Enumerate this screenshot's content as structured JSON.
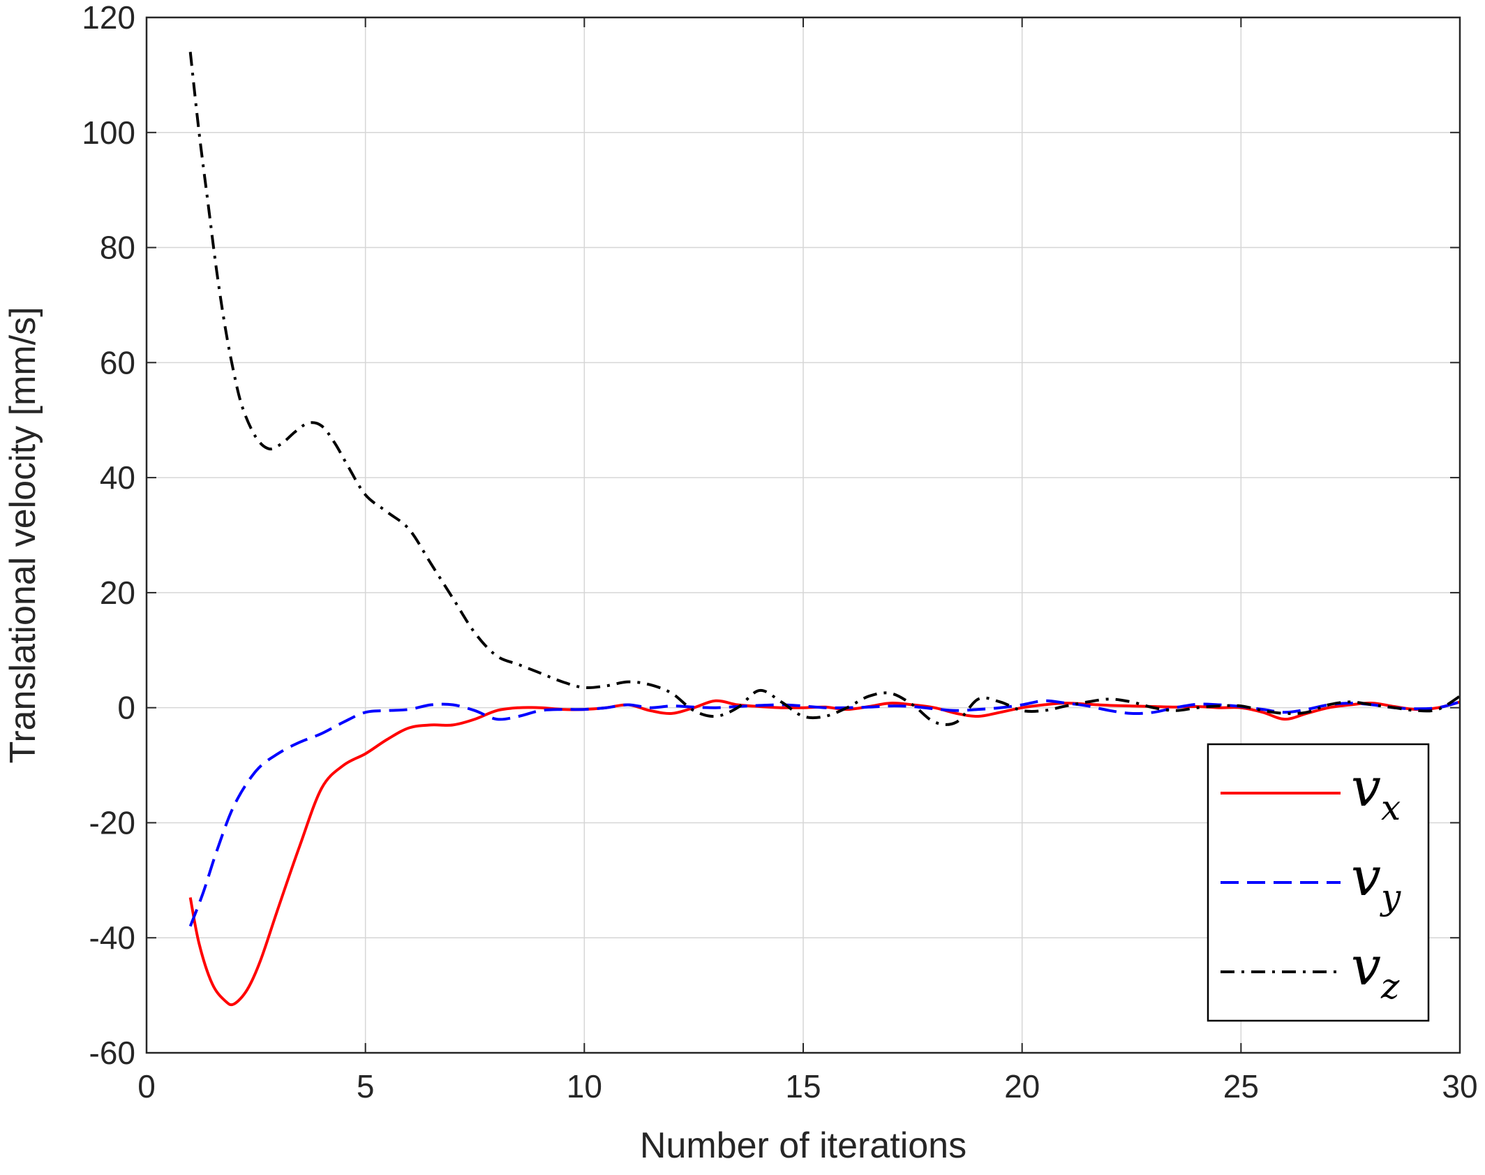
{
  "chart_data": {
    "type": "line",
    "title": "",
    "xlabel": "Number of iterations",
    "ylabel": "Translational velocity [mm/s]",
    "xlim": [
      0,
      30
    ],
    "ylim": [
      -60,
      120
    ],
    "xticks": [
      0,
      5,
      10,
      15,
      20,
      25,
      30
    ],
    "yticks": [
      -60,
      -40,
      -20,
      0,
      20,
      40,
      60,
      80,
      100,
      120
    ],
    "grid": true,
    "legend_position": "bottom-right",
    "series": [
      {
        "name": "v",
        "subscript": "x",
        "color": "#ff0000",
        "dash": "solid",
        "x": [
          1,
          1.2,
          1.5,
          1.8,
          2,
          2.3,
          2.6,
          3,
          3.5,
          4,
          4.5,
          5,
          5.5,
          6,
          6.5,
          7,
          7.5,
          8,
          8.5,
          9,
          9.5,
          10,
          10.5,
          11,
          11.5,
          12,
          12.5,
          13,
          13.5,
          14,
          14.5,
          15,
          15.5,
          16,
          16.5,
          17,
          17.5,
          18,
          18.5,
          19,
          19.5,
          20,
          20.5,
          21,
          21.5,
          22,
          22.5,
          23,
          23.5,
          24,
          24.5,
          25,
          25.5,
          26,
          26.5,
          27,
          27.5,
          28,
          28.5,
          29,
          29.5,
          30
        ],
        "y": [
          -33,
          -41,
          -48,
          -51,
          -51.5,
          -49,
          -44,
          -35,
          -24,
          -14,
          -10,
          -8,
          -5.5,
          -3.5,
          -3,
          -3,
          -2,
          -0.5,
          0,
          0,
          -0.3,
          -0.3,
          0,
          0.5,
          -0.5,
          -1,
          0,
          1.2,
          0.5,
          0.2,
          0,
          0,
          0.1,
          -0.3,
          0.2,
          0.8,
          0.5,
          0,
          -1,
          -1.5,
          -0.8,
          0,
          0.5,
          0.8,
          0.6,
          0.4,
          0.3,
          0.2,
          0.1,
          0.2,
          0,
          0,
          -0.8,
          -2,
          -1,
          0,
          0.5,
          0.8,
          0.2,
          -0.3,
          0,
          1
        ]
      },
      {
        "name": "v",
        "subscript": "y",
        "color": "#0000ff",
        "dash": "dashed",
        "x": [
          1,
          1.3,
          1.6,
          2,
          2.5,
          3,
          3.5,
          4,
          4.5,
          5,
          5.5,
          6,
          6.5,
          7,
          7.5,
          8,
          8.5,
          9,
          9.5,
          10,
          10.5,
          11,
          11.5,
          12,
          12.5,
          13,
          13.5,
          14,
          14.5,
          15,
          15.5,
          16,
          16.5,
          17,
          17.5,
          18,
          18.5,
          19,
          19.5,
          20,
          20.5,
          21,
          21.5,
          22,
          22.5,
          23,
          23.5,
          24,
          24.5,
          25,
          25.5,
          26,
          26.5,
          27,
          27.5,
          28,
          28.5,
          29,
          29.5,
          30
        ],
        "y": [
          -38,
          -32,
          -25,
          -17,
          -11,
          -8,
          -6,
          -4.5,
          -2.5,
          -0.8,
          -0.5,
          -0.3,
          0.5,
          0.5,
          -0.5,
          -2,
          -1.5,
          -0.5,
          -0.3,
          -0.3,
          0,
          0.5,
          0,
          0.3,
          0.1,
          0,
          0.2,
          0.4,
          0.5,
          0.3,
          0,
          0,
          0.1,
          0.3,
          0.2,
          -0.2,
          -0.5,
          -0.3,
          0,
          0.5,
          1.2,
          0.8,
          0.3,
          -0.5,
          -1,
          -0.8,
          0,
          0.6,
          0.5,
          0.2,
          -0.3,
          -0.8,
          -0.3,
          0.5,
          0.8,
          0.5,
          0,
          -0.2,
          0,
          1
        ]
      },
      {
        "name": "v",
        "subscript": "z",
        "color": "#000000",
        "dash": "dashdot",
        "x": [
          1,
          1.2,
          1.4,
          1.6,
          1.8,
          2,
          2.2,
          2.5,
          2.8,
          3.1,
          3.4,
          3.7,
          4,
          4.3,
          4.6,
          5,
          5.5,
          6,
          6.5,
          7,
          7.5,
          8,
          8.5,
          9,
          9.5,
          10,
          10.5,
          11,
          11.5,
          12,
          12.5,
          13,
          13.5,
          14,
          14.5,
          15,
          15.5,
          16,
          16.5,
          17,
          17.5,
          18,
          18.5,
          19,
          19.5,
          20,
          20.5,
          21,
          21.5,
          22,
          22.5,
          23,
          23.5,
          24,
          24.5,
          25,
          25.5,
          26,
          26.5,
          27,
          27.5,
          28,
          28.5,
          29,
          29.5,
          30
        ],
        "y": [
          114,
          100,
          88,
          76,
          66,
          58,
          52,
          47,
          45,
          46,
          48,
          49.5,
          49,
          46,
          42,
          37,
          34,
          31,
          25,
          19,
          13,
          9,
          7.5,
          6,
          4.5,
          3.5,
          3.8,
          4.5,
          4,
          2.5,
          -0.5,
          -1.5,
          0,
          3,
          1,
          -1.5,
          -1.5,
          0,
          2,
          2.5,
          0.5,
          -2.5,
          -2.5,
          1.5,
          1,
          -0.5,
          -0.5,
          0.3,
          1,
          1.5,
          1,
          0,
          -0.5,
          0,
          0.3,
          0.3,
          -0.5,
          -1,
          -0.8,
          0.5,
          1,
          0.5,
          0,
          -0.5,
          -0.3,
          2
        ]
      }
    ]
  }
}
